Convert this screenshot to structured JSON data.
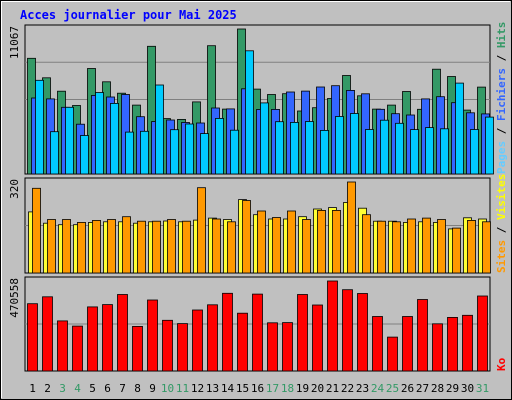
{
  "chart_data": {
    "type": "bar",
    "title": "Acces journalier pour Mai 2025",
    "weekend_days": [
      "3",
      "4",
      "10",
      "11",
      "17",
      "18",
      "24",
      "25",
      "31"
    ],
    "categories": [
      "1",
      "2",
      "3",
      "4",
      "5",
      "6",
      "7",
      "8",
      "9",
      "10",
      "11",
      "12",
      "13",
      "14",
      "15",
      "16",
      "17",
      "18",
      "19",
      "20",
      "21",
      "22",
      "23",
      "24",
      "25",
      "26",
      "27",
      "28",
      "29",
      "30",
      "31"
    ],
    "panels": [
      {
        "max_label": "11067",
        "ymax": 11067,
        "side_label": [
          "Pages",
          " / ",
          "Fichiers",
          " / ",
          "Hits"
        ],
        "side_colors": [
          "#66ccff",
          "#000000",
          "#3366ff",
          "#000000",
          "#339966"
        ],
        "series": [
          {
            "name": "Hits",
            "color": "#339966",
            "values": [
              8830,
              7340,
              6320,
              5230,
              8050,
              7040,
              6170,
              5260,
              9750,
              4230,
              4170,
              5500,
              9790,
              4950,
              11067,
              6480,
              6070,
              6130,
              4810,
              5060,
              5760,
              7520,
              5970,
              4950,
              5260,
              6300,
              4940,
              8000,
              7440,
              4880,
              6630
            ]
          },
          {
            "name": "Fichiers",
            "color": "#3366ff",
            "values": [
              5800,
              5730,
              5090,
              3800,
              6000,
              5880,
              6070,
              4370,
              4000,
              4120,
              3930,
              3890,
              5040,
              4970,
              6500,
              4920,
              4930,
              6260,
              6330,
              6640,
              6740,
              6380,
              6120,
              4940,
              4600,
              4500,
              5730,
              5900,
              5440,
              4670,
              4590
            ]
          },
          {
            "name": "Pages",
            "color": "#00ccff",
            "values": [
              7150,
              3230,
              5090,
              2940,
              6220,
              5390,
              3200,
              3260,
              6790,
              3380,
              3820,
              3080,
              4240,
              3340,
              9400,
              5430,
              3990,
              3940,
              4010,
              3330,
              4390,
              4620,
              3400,
              4110,
              3870,
              3390,
              3540,
              3450,
              6940,
              3400,
              4340
            ]
          }
        ]
      },
      {
        "max_label": "320",
        "ymax": 320,
        "side_label": [
          "Sites",
          " / ",
          "Visites"
        ],
        "side_colors": [
          "#ff9900",
          "#000000",
          "#ffff00"
        ],
        "series": [
          {
            "name": "Visites",
            "color": "#ffff33",
            "values": [
              215,
              175,
              170,
              170,
              178,
              180,
              180,
              175,
              180,
              183,
              180,
              186,
              193,
              188,
              258,
              205,
              190,
              190,
              198,
              225,
              230,
              248,
              228,
              182,
              182,
              178,
              180,
              178,
              155,
              194,
              190
            ]
          },
          {
            "name": "Sites",
            "color": "#ff9900",
            "values": [
              298,
              188,
              188,
              178,
              185,
              188,
              198,
              182,
              182,
              188,
              182,
              300,
              190,
              180,
              255,
              218,
              195,
              218,
              188,
              220,
              220,
              320,
              205,
              182,
              180,
              190,
              193,
              188,
              158,
              185,
              180
            ]
          }
        ]
      },
      {
        "max_label": "470558",
        "ymax": 470558,
        "side_label": [
          "Ko"
        ],
        "side_colors": [
          "#ff0000"
        ],
        "series": [
          {
            "name": "Ko",
            "color": "#ff0000",
            "values": [
              352000,
              388000,
              262000,
              235000,
              335000,
              347000,
              400000,
              233000,
              371000,
              265000,
              248000,
              319000,
              346000,
              406000,
              302000,
              402000,
              252000,
              253000,
              400000,
              345000,
              470558,
              425000,
              405000,
              285000,
              177000,
              285000,
              374000,
              247000,
              280000,
              291000,
              392000
            ]
          }
        ]
      }
    ]
  }
}
